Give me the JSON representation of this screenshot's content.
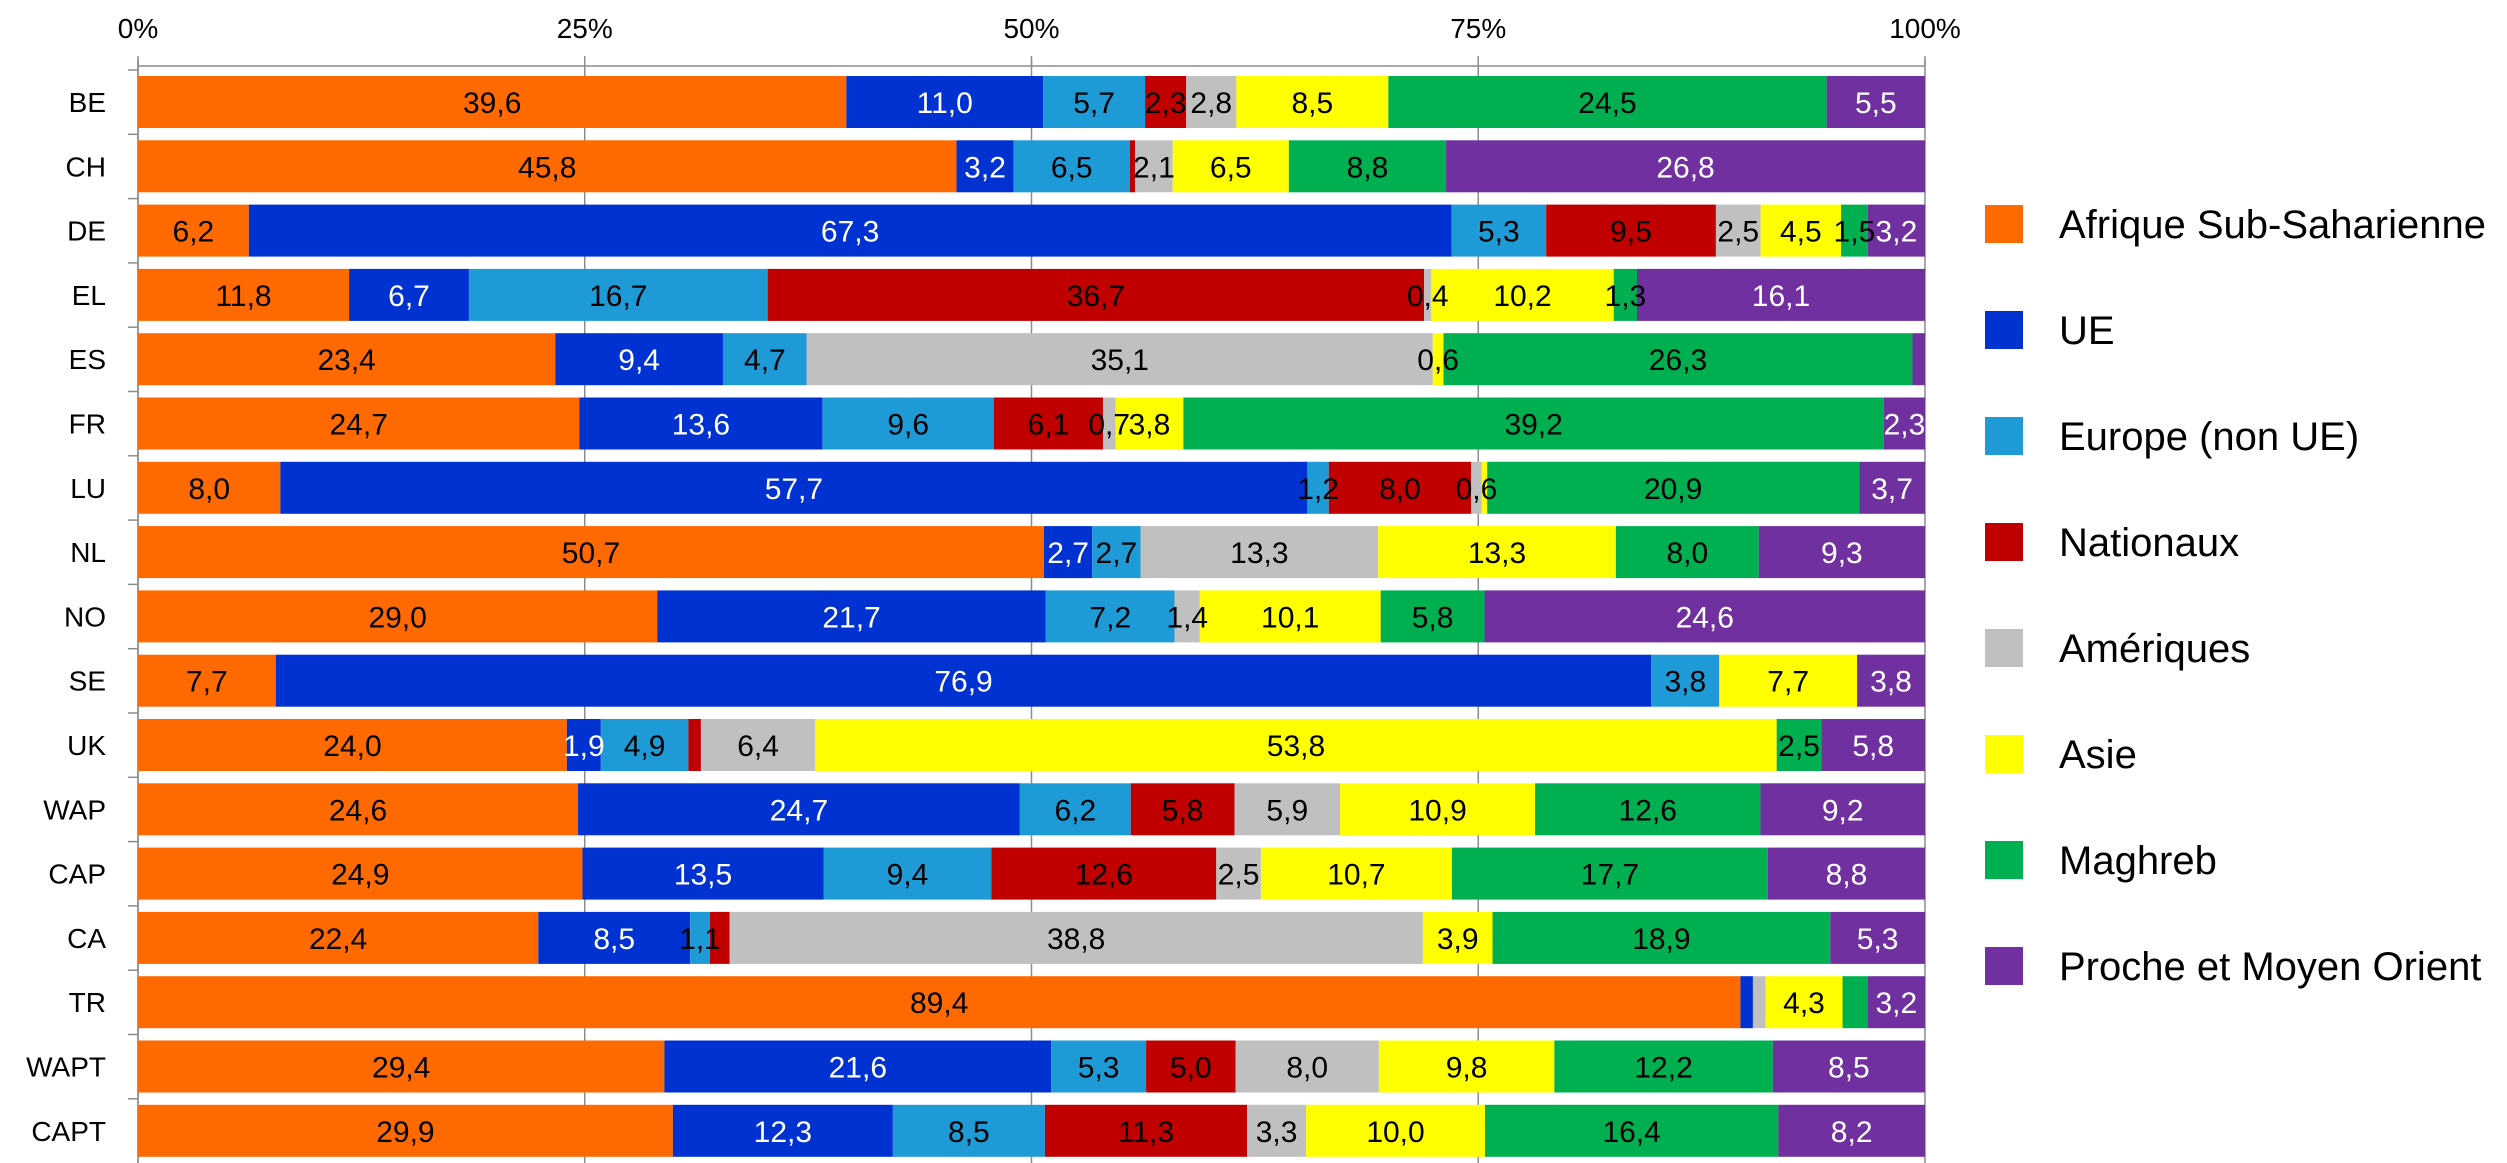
{
  "chart_data": {
    "type": "bar",
    "orientation": "horizontal",
    "stacked": "percent",
    "title": "",
    "xlabel": "",
    "ylabel": "",
    "xlim": [
      0,
      100
    ],
    "x_ticks": [
      "0%",
      "25%",
      "50%",
      "75%",
      "100%"
    ],
    "x_axis_position": "top",
    "grid": true,
    "legend_position": "right",
    "categories": [
      "BE",
      "CH",
      "DE",
      "EL",
      "ES",
      "FR",
      "LU",
      "NL",
      "NO",
      "SE",
      "UK",
      "WAP",
      "CAP",
      "CA",
      "TR",
      "WAPT",
      "CAPT"
    ],
    "series": [
      {
        "name": "Afrique Sub-Saharienne",
        "color": "#ff6a00",
        "values": [
          39.6,
          45.8,
          6.2,
          11.8,
          23.4,
          24.7,
          8.0,
          50.7,
          29.0,
          7.7,
          24.0,
          24.6,
          24.9,
          22.4,
          89.4,
          29.4,
          29.9
        ],
        "labels": [
          "39,6",
          "45,8",
          "6,2",
          "11,8",
          "23,4",
          "24,7",
          "8,0",
          "50,7",
          "29,0",
          "7,7",
          "24,0",
          "24,6",
          "24,9",
          "22,4",
          "89,4",
          "29,4",
          "29,9"
        ]
      },
      {
        "name": "UE",
        "color": "#0032d2",
        "values": [
          11.0,
          3.2,
          67.3,
          6.7,
          9.4,
          13.6,
          57.7,
          2.7,
          21.7,
          76.9,
          1.9,
          24.7,
          13.5,
          8.5,
          0.7,
          21.6,
          12.3
        ],
        "labels": [
          "11,0",
          "3,2",
          "67,3",
          "6,7",
          "9,4",
          "13,6",
          "57,7",
          "2,7",
          "21,7",
          "76,9",
          "1,9",
          "24,7",
          "13,5",
          "8,5",
          "",
          "21,6",
          "12,3"
        ]
      },
      {
        "name": "Europe (non UE)",
        "color": "#1e9bd7",
        "values": [
          5.7,
          6.5,
          5.3,
          16.7,
          4.7,
          9.6,
          1.2,
          2.7,
          7.2,
          3.8,
          4.9,
          6.2,
          9.4,
          1.1,
          0,
          5.3,
          8.5
        ],
        "labels": [
          "5,7",
          "6,5",
          "5,3",
          "16,7",
          "4,7",
          "9,6",
          "1,2",
          "2,7",
          "7,2",
          "3,8",
          "4,9",
          "6,2",
          "9,4",
          "1,1",
          "",
          "5,3",
          "8,5"
        ]
      },
      {
        "name": "Nationaux",
        "color": "#c00000",
        "values": [
          2.3,
          0.3,
          9.5,
          36.7,
          0,
          6.1,
          8.0,
          0,
          0,
          0,
          0.7,
          5.8,
          12.6,
          1.1,
          0,
          5.0,
          11.3
        ],
        "labels": [
          "2,3",
          "",
          "9,5",
          "36,7",
          "",
          "6,1",
          "8,0",
          "",
          "",
          "",
          "",
          "5,8",
          "12,6",
          "",
          "",
          "5,0",
          "11,3"
        ]
      },
      {
        "name": "Amériques",
        "color": "#c0c0c0",
        "values": [
          2.8,
          2.1,
          2.5,
          0.4,
          35.1,
          0.7,
          0.6,
          13.3,
          1.4,
          0,
          6.4,
          5.9,
          2.5,
          38.8,
          0.7,
          8.0,
          3.3
        ],
        "labels": [
          "2,8",
          "2,1",
          "2,5",
          "0,4",
          "35,1",
          "0,7",
          "0,6",
          "13,3",
          "1,4",
          "",
          "6,4",
          "5,9",
          "2,5",
          "38,8",
          "",
          "8,0",
          "3,3"
        ]
      },
      {
        "name": "Asie",
        "color": "#ffff00",
        "values": [
          8.5,
          6.5,
          4.5,
          10.2,
          0.6,
          3.8,
          0.3,
          13.3,
          10.1,
          7.7,
          53.8,
          10.9,
          10.7,
          3.9,
          4.3,
          9.8,
          10.0
        ],
        "labels": [
          "8,5",
          "6,5",
          "4,5",
          "10,2",
          "0,6",
          "3,8",
          "",
          "13,3",
          "10,1",
          "7,7",
          "53,8",
          "10,9",
          "10,7",
          "3,9",
          "4,3",
          "9,8",
          "10,0"
        ]
      },
      {
        "name": "Maghreb",
        "color": "#00b050",
        "values": [
          24.5,
          8.8,
          1.5,
          1.3,
          26.3,
          39.2,
          20.9,
          8.0,
          5.8,
          0,
          2.5,
          12.6,
          17.7,
          18.9,
          1.4,
          12.2,
          16.4
        ],
        "labels": [
          "24,5",
          "8,8",
          "1,5",
          "1,3",
          "26,3",
          "39,2",
          "20,9",
          "8,0",
          "5,8",
          "",
          "2,5",
          "12,6",
          "17,7",
          "18,9",
          "",
          "12,2",
          "16,4"
        ]
      },
      {
        "name": "Proche et Moyen Orient",
        "color": "#7030a0",
        "values": [
          5.5,
          26.8,
          3.2,
          16.1,
          0.7,
          2.3,
          3.7,
          9.3,
          24.6,
          3.8,
          5.8,
          9.2,
          8.8,
          5.3,
          3.2,
          8.5,
          8.2
        ],
        "labels": [
          "5,5",
          "26,8",
          "3,2",
          "16,1",
          "",
          "2,3",
          "3,7",
          "9,3",
          "24,6",
          "3,8",
          "5,8",
          "9,2",
          "8,8",
          "5,3",
          "3,2",
          "8,5",
          "8,2"
        ]
      }
    ]
  }
}
